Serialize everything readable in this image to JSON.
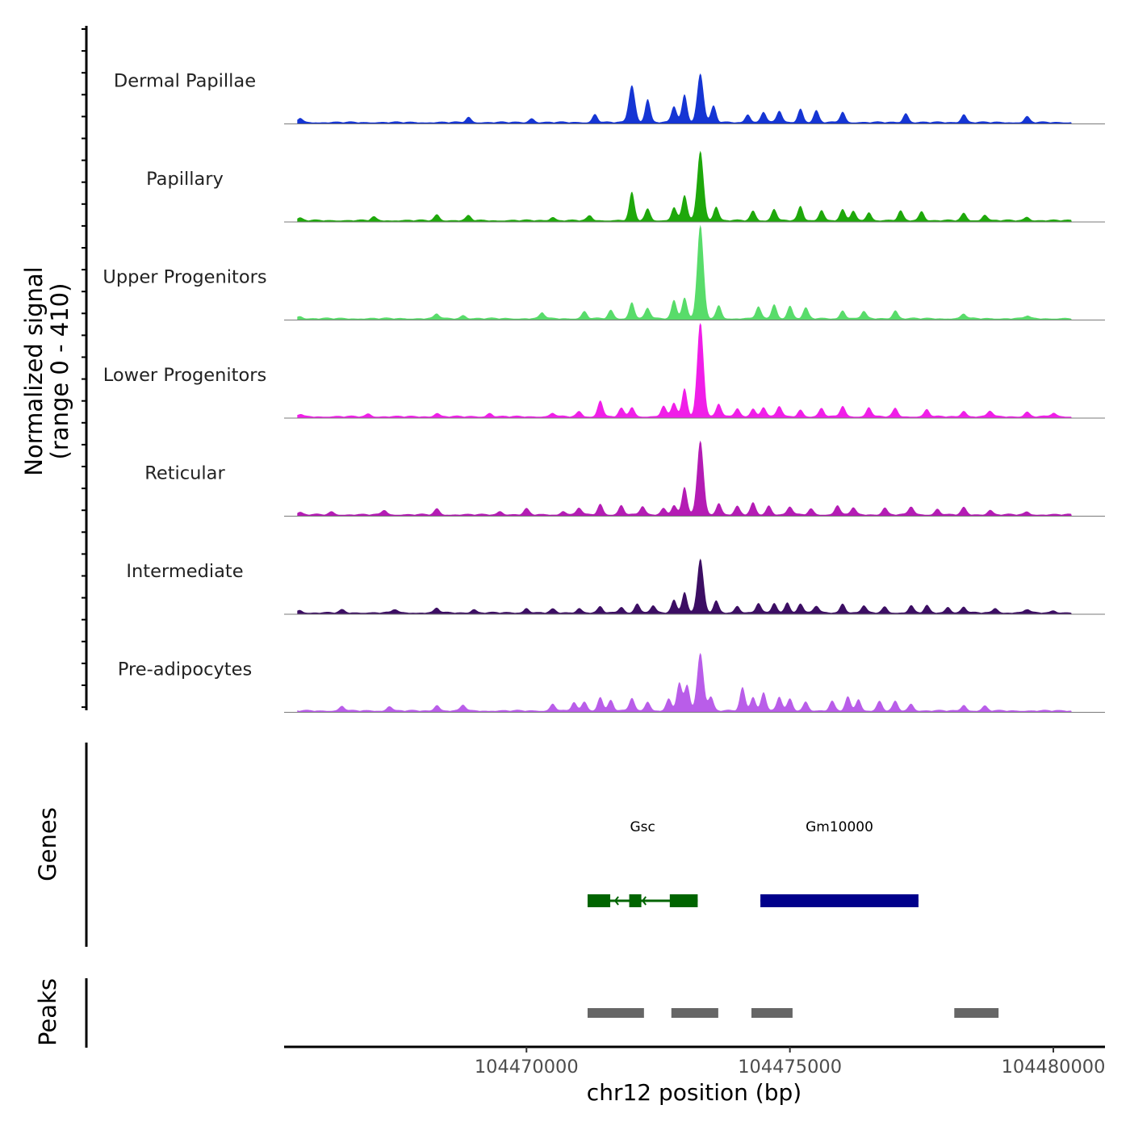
{
  "chart_data": {
    "type": "area",
    "title": "",
    "ylabel_line1": "Normalized signal",
    "ylabel_line2": "(range 0 - 410)",
    "xlabel": "chr12 position (bp)",
    "xlim": [
      104465400,
      104480980
    ],
    "xticks": [
      104470000,
      104475000,
      104480000
    ],
    "ymax": 410,
    "tracks": [
      {
        "name": "Dermal Papillae",
        "color": "#1535d4",
        "peaks": [
          [
            104465700,
            18
          ],
          [
            104468900,
            22
          ],
          [
            104470100,
            18
          ],
          [
            104471300,
            35
          ],
          [
            104472000,
            160
          ],
          [
            104472300,
            100
          ],
          [
            104472800,
            70
          ],
          [
            104473000,
            120
          ],
          [
            104473300,
            210
          ],
          [
            104473550,
            70
          ],
          [
            104474200,
            35
          ],
          [
            104474500,
            45
          ],
          [
            104474800,
            50
          ],
          [
            104475200,
            60
          ],
          [
            104475500,
            50
          ],
          [
            104476000,
            45
          ],
          [
            104477200,
            40
          ],
          [
            104478300,
            35
          ],
          [
            104479500,
            25
          ]
        ]
      },
      {
        "name": "Papillary",
        "color": "#1ea80b",
        "peaks": [
          [
            104465700,
            10
          ],
          [
            104467100,
            15
          ],
          [
            104468300,
            25
          ],
          [
            104468900,
            20
          ],
          [
            104470500,
            15
          ],
          [
            104471200,
            20
          ],
          [
            104472000,
            120
          ],
          [
            104472300,
            50
          ],
          [
            104472800,
            55
          ],
          [
            104473000,
            110
          ],
          [
            104473300,
            300
          ],
          [
            104473600,
            60
          ],
          [
            104474300,
            40
          ],
          [
            104474700,
            50
          ],
          [
            104475200,
            60
          ],
          [
            104475600,
            45
          ],
          [
            104476000,
            45
          ],
          [
            104476200,
            40
          ],
          [
            104476500,
            35
          ],
          [
            104477100,
            40
          ],
          [
            104477500,
            40
          ],
          [
            104478300,
            30
          ],
          [
            104478700,
            25
          ],
          [
            104479500,
            15
          ]
        ]
      },
      {
        "name": "Upper Progenitors",
        "color": "#58dc6a",
        "peaks": [
          [
            104465700,
            10
          ],
          [
            104468300,
            20
          ],
          [
            104468800,
            15
          ],
          [
            104470300,
            25
          ],
          [
            104471100,
            30
          ],
          [
            104471600,
            35
          ],
          [
            104472000,
            70
          ],
          [
            104472300,
            45
          ],
          [
            104472800,
            80
          ],
          [
            104473000,
            90
          ],
          [
            104473300,
            400
          ],
          [
            104473650,
            55
          ],
          [
            104474400,
            50
          ],
          [
            104474700,
            60
          ],
          [
            104475000,
            55
          ],
          [
            104475300,
            45
          ],
          [
            104476000,
            35
          ],
          [
            104476400,
            30
          ],
          [
            104477000,
            35
          ],
          [
            104478300,
            20
          ],
          [
            104479500,
            12
          ]
        ]
      },
      {
        "name": "Lower Progenitors",
        "color": "#f01ee8",
        "peaks": [
          [
            104465700,
            10
          ],
          [
            104467000,
            12
          ],
          [
            104468300,
            15
          ],
          [
            104469300,
            15
          ],
          [
            104470500,
            15
          ],
          [
            104471000,
            22
          ],
          [
            104471400,
            70
          ],
          [
            104471800,
            35
          ],
          [
            104472000,
            40
          ],
          [
            104472600,
            45
          ],
          [
            104472800,
            60
          ],
          [
            104473000,
            120
          ],
          [
            104473300,
            410
          ],
          [
            104473650,
            55
          ],
          [
            104474000,
            35
          ],
          [
            104474300,
            35
          ],
          [
            104474500,
            40
          ],
          [
            104474800,
            45
          ],
          [
            104475200,
            30
          ],
          [
            104475600,
            35
          ],
          [
            104476000,
            45
          ],
          [
            104476500,
            40
          ],
          [
            104477000,
            35
          ],
          [
            104477600,
            30
          ],
          [
            104478300,
            25
          ],
          [
            104478800,
            25
          ],
          [
            104479500,
            20
          ],
          [
            104480000,
            15
          ]
        ]
      },
      {
        "name": "Reticular",
        "color": "#b41cb4",
        "peaks": [
          [
            104465700,
            10
          ],
          [
            104466300,
            12
          ],
          [
            104467300,
            20
          ],
          [
            104468300,
            25
          ],
          [
            104469500,
            15
          ],
          [
            104470000,
            25
          ],
          [
            104470700,
            15
          ],
          [
            104471000,
            30
          ],
          [
            104471400,
            45
          ],
          [
            104471800,
            40
          ],
          [
            104472200,
            35
          ],
          [
            104472600,
            30
          ],
          [
            104472800,
            40
          ],
          [
            104473000,
            120
          ],
          [
            104473300,
            320
          ],
          [
            104473650,
            50
          ],
          [
            104474000,
            35
          ],
          [
            104474300,
            50
          ],
          [
            104474600,
            40
          ],
          [
            104475000,
            35
          ],
          [
            104475400,
            25
          ],
          [
            104475900,
            40
          ],
          [
            104476200,
            30
          ],
          [
            104476800,
            30
          ],
          [
            104477300,
            35
          ],
          [
            104477800,
            25
          ],
          [
            104478300,
            30
          ],
          [
            104478800,
            20
          ],
          [
            104479500,
            12
          ]
        ]
      },
      {
        "name": "Intermediate",
        "color": "#3c0e63",
        "peaks": [
          [
            104465700,
            10
          ],
          [
            104466500,
            12
          ],
          [
            104467500,
            15
          ],
          [
            104468300,
            20
          ],
          [
            104469000,
            15
          ],
          [
            104470000,
            20
          ],
          [
            104470500,
            15
          ],
          [
            104471000,
            20
          ],
          [
            104471400,
            25
          ],
          [
            104471800,
            25
          ],
          [
            104472100,
            40
          ],
          [
            104472400,
            30
          ],
          [
            104472800,
            55
          ],
          [
            104473000,
            90
          ],
          [
            104473300,
            230
          ],
          [
            104473600,
            50
          ],
          [
            104474000,
            30
          ],
          [
            104474400,
            40
          ],
          [
            104474700,
            40
          ],
          [
            104474950,
            45
          ],
          [
            104475200,
            40
          ],
          [
            104475500,
            30
          ],
          [
            104476000,
            40
          ],
          [
            104476400,
            30
          ],
          [
            104476800,
            25
          ],
          [
            104477300,
            30
          ],
          [
            104477600,
            30
          ],
          [
            104478000,
            25
          ],
          [
            104478300,
            25
          ],
          [
            104478900,
            20
          ],
          [
            104479500,
            15
          ],
          [
            104480000,
            10
          ]
        ]
      },
      {
        "name": "Pre-adipocytes",
        "color": "#b95de9",
        "peaks": [
          [
            104466500,
            20
          ],
          [
            104467400,
            20
          ],
          [
            104468300,
            25
          ],
          [
            104468800,
            25
          ],
          [
            104470500,
            30
          ],
          [
            104470900,
            35
          ],
          [
            104471100,
            40
          ],
          [
            104471400,
            60
          ],
          [
            104471600,
            45
          ],
          [
            104472000,
            55
          ],
          [
            104472300,
            40
          ],
          [
            104472700,
            50
          ],
          [
            104472900,
            120
          ],
          [
            104473050,
            110
          ],
          [
            104473300,
            250
          ],
          [
            104473500,
            60
          ],
          [
            104474100,
            100
          ],
          [
            104474300,
            60
          ],
          [
            104474500,
            80
          ],
          [
            104474800,
            60
          ],
          [
            104475000,
            50
          ],
          [
            104475300,
            40
          ],
          [
            104475800,
            40
          ],
          [
            104476100,
            60
          ],
          [
            104476300,
            50
          ],
          [
            104476700,
            40
          ],
          [
            104477000,
            40
          ],
          [
            104477300,
            30
          ],
          [
            104478300,
            25
          ],
          [
            104478700,
            20
          ]
        ]
      }
    ],
    "genes": {
      "label": "Genes",
      "items": [
        {
          "name": "Gsc",
          "strand": "-",
          "color": "#006400",
          "start": 104471160,
          "end": 104473250,
          "exons": [
            [
              104471160,
              104471590
            ],
            [
              104471950,
              104472180
            ],
            [
              104472720,
              104473250
            ]
          ]
        },
        {
          "name": "Gm10000",
          "strand": "+",
          "color": "#00008b",
          "start": 104474440,
          "end": 104477440,
          "exons": [
            [
              104474440,
              104477440
            ]
          ]
        }
      ]
    },
    "peaks_track": {
      "label": "Peaks",
      "color": "#666666",
      "regions": [
        [
          104471160,
          104472230
        ],
        [
          104472750,
          104473640
        ],
        [
          104474270,
          104475050
        ],
        [
          104478120,
          104478960
        ]
      ]
    }
  }
}
